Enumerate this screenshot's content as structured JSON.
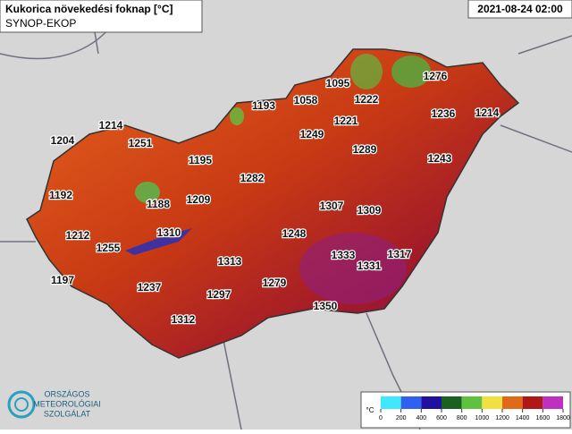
{
  "header": {
    "title": "Kukorica növekedési foknap [°C]",
    "subtitle": "SYNOP-EKOP",
    "date": "2021-08-24 02:00"
  },
  "stations": {
    "values": [
      1276,
      1095,
      1222,
      1058,
      1193,
      1221,
      1236,
      1214,
      1214,
      1204,
      1251,
      1249,
      1289,
      1195,
      1243,
      1282,
      1192,
      1209,
      1188,
      1307,
      1309,
      1212,
      1310,
      1248,
      1255,
      1333,
      1317,
      1331,
      1197,
      1313,
      1237,
      1279,
      1297,
      1350,
      1312
    ]
  },
  "legend": {
    "unit": "°C",
    "ticks": [
      0,
      200,
      400,
      600,
      800,
      1000,
      1200,
      1400,
      1600,
      1800
    ],
    "colors": [
      "#40e8ff",
      "#3060f0",
      "#2010a0",
      "#1a6020",
      "#60c040",
      "#f0e040",
      "#e06a18",
      "#b01818",
      "#c030c0"
    ]
  },
  "logo": {
    "lines": [
      "ORSZÁGOS",
      "METEOROLÓGIAI",
      "SZOLGÁLAT"
    ]
  }
}
